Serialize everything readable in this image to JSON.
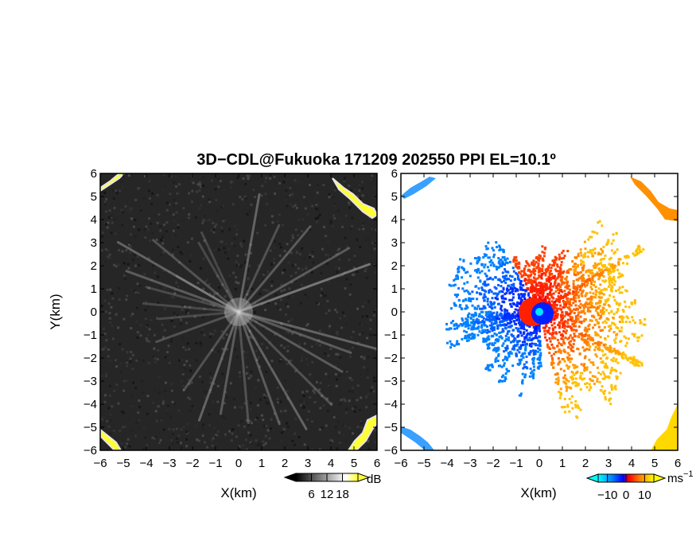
{
  "figure": {
    "title": "3D−CDL@Fukuoka 171209 202550 PPI EL=10.1º"
  },
  "chart_data": [
    {
      "type": "heatmap",
      "panel": "reflectivity",
      "xlabel": "X(km)",
      "ylabel": "Y(km)",
      "xlim": [
        -6,
        6
      ],
      "ylim": [
        -6,
        6
      ],
      "x_ticks": [
        "−6",
        "−5",
        "−4",
        "−3",
        "−2",
        "−1",
        "0",
        "1",
        "2",
        "3",
        "4",
        "5",
        "6"
      ],
      "y_ticks": [
        "−6",
        "−5",
        "−4",
        "−3",
        "−2",
        "−1",
        "0",
        "1",
        "2",
        "3",
        "4",
        "5",
        "6"
      ],
      "colorbar": {
        "unit": "dB",
        "range": [
          0,
          24
        ],
        "tick_values": [
          6,
          12,
          18
        ],
        "tick_labels": [
          "6",
          "12",
          "18"
        ],
        "colors": [
          "#000000",
          "#ffffff",
          "#ffff00"
        ]
      },
      "features": {
        "background_level": "dark gray speckle",
        "radial_streaks_from_origin": true,
        "bright_yellow_targets": [
          "top-left corner",
          "top-right corner",
          "bottom-left corner",
          "bottom-right corner"
        ]
      }
    },
    {
      "type": "heatmap",
      "panel": "doppler_velocity",
      "xlabel": "X(km)",
      "ylabel": "",
      "xlim": [
        -6,
        6
      ],
      "ylim": [
        -6,
        6
      ],
      "x_ticks": [
        "−6",
        "−5",
        "−4",
        "−3",
        "−2",
        "−1",
        "0",
        "1",
        "2",
        "3",
        "4",
        "5",
        "6"
      ],
      "y_ticks": [
        "−6",
        "−5",
        "−4",
        "−3",
        "−2",
        "−1",
        "0",
        "1",
        "2",
        "3",
        "4",
        "5",
        "6"
      ],
      "colorbar": {
        "unit": "ms",
        "unit_exponent": "−1",
        "range": [
          -15,
          15
        ],
        "tick_values": [
          -10,
          0,
          10
        ],
        "tick_labels": [
          "−10",
          "0",
          "10"
        ],
        "colors": [
          "#00ffff",
          "#0080ff",
          "#0000ff",
          "#ff0000",
          "#ff8000",
          "#ffff00"
        ]
      },
      "radar_site_marker": {
        "x": 0,
        "y": 0,
        "color": "#00e5ff"
      },
      "features": {
        "negative_velocity_sector": "west / southwest (blue)",
        "positive_velocity_sector": "north-east to south-east (red-orange-yellow)",
        "corner_targets": [
          "top-left (light blue)",
          "top-right (orange)",
          "bottom-left (light blue)",
          "bottom-right (yellow)"
        ]
      }
    }
  ]
}
